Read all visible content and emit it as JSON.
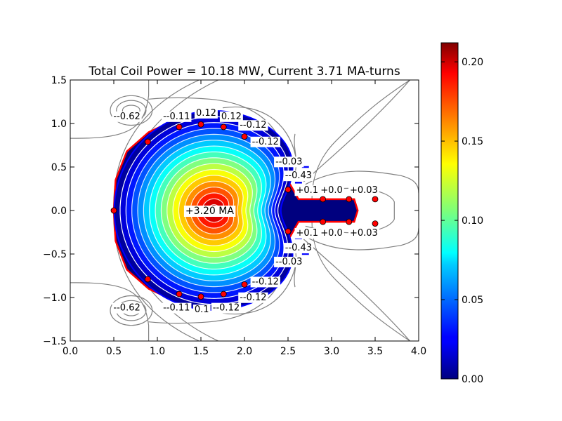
{
  "chart_data": {
    "type": "contour",
    "title": "Total Coil Power = 10.18 MW, Current 3.71 MA-turns",
    "xlim": [
      0.0,
      4.0
    ],
    "ylim": [
      -1.5,
      1.5
    ],
    "x_ticks": [
      "0.0",
      "0.5",
      "1.0",
      "1.5",
      "2.0",
      "2.5",
      "3.0",
      "3.5",
      "4.0"
    ],
    "y_ticks": [
      "−1.5",
      "−1.0",
      "−0.5",
      "0.0",
      "0.5",
      "1.0",
      "1.5"
    ],
    "colormap": "jet",
    "colorbar": {
      "range": [
        0.0,
        0.212
      ],
      "ticks": [
        "0.00",
        "0.05",
        "0.10",
        "0.15",
        "0.20"
      ],
      "tick_values": [
        0.0,
        0.05,
        0.1,
        0.15,
        0.2
      ]
    },
    "plasma_center": [
      1.65,
      0.0
    ],
    "plasma_current_label": "+3.20 MA",
    "contour_labels": [
      {
        "text": "--0.62",
        "x": 0.65,
        "y": 1.09
      },
      {
        "text": "--0.11",
        "x": 1.22,
        "y": 1.09
      },
      {
        "text": "0.12",
        "x": 1.56,
        "y": 1.13
      },
      {
        "text": "0.12",
        "x": 1.85,
        "y": 1.09
      },
      {
        "text": "--0.12",
        "x": 2.1,
        "y": 0.99
      },
      {
        "text": "--0.12",
        "x": 2.24,
        "y": 0.8
      },
      {
        "text": "--0.03",
        "x": 2.51,
        "y": 0.57
      },
      {
        "text": "--0.43",
        "x": 2.62,
        "y": 0.41
      },
      {
        "text": "+0.1",
        "x": 2.72,
        "y": 0.24
      },
      {
        "text": "+0.0",
        "x": 3.0,
        "y": 0.24
      },
      {
        "text": "+0.03",
        "x": 3.37,
        "y": 0.24
      },
      {
        "text": "+0.1",
        "x": 2.72,
        "y": -0.25
      },
      {
        "text": "+0.0",
        "x": 3.0,
        "y": -0.25
      },
      {
        "text": "+0.03",
        "x": 3.37,
        "y": -0.25
      },
      {
        "text": "--0.43",
        "x": 2.62,
        "y": -0.42
      },
      {
        "text": "--0.03",
        "x": 2.51,
        "y": -0.58
      },
      {
        "text": "--0.12",
        "x": 2.24,
        "y": -0.81
      },
      {
        "text": "--0.12",
        "x": 2.1,
        "y": -0.99
      },
      {
        "text": "--0.62",
        "x": 0.65,
        "y": -1.11
      },
      {
        "text": "--0.11",
        "x": 1.22,
        "y": -1.11
      },
      {
        "text": "0.1",
        "x": 1.51,
        "y": -1.13
      },
      {
        "text": "--0.12",
        "x": 1.79,
        "y": -1.11
      }
    ],
    "coils": [
      [
        0.5,
        0.0
      ],
      [
        0.89,
        0.79
      ],
      [
        1.25,
        0.96
      ],
      [
        1.5,
        0.99
      ],
      [
        1.76,
        0.96
      ],
      [
        2.0,
        0.85
      ],
      [
        2.5,
        0.24
      ],
      [
        2.9,
        0.13
      ],
      [
        3.2,
        0.13
      ],
      [
        3.5,
        0.13
      ],
      [
        0.89,
        -0.79
      ],
      [
        1.25,
        -0.96
      ],
      [
        1.5,
        -0.99
      ],
      [
        1.76,
        -0.96
      ],
      [
        2.0,
        -0.85
      ],
      [
        2.5,
        -0.24
      ],
      [
        2.9,
        -0.13
      ],
      [
        3.2,
        -0.13
      ],
      [
        3.5,
        -0.15
      ]
    ]
  }
}
